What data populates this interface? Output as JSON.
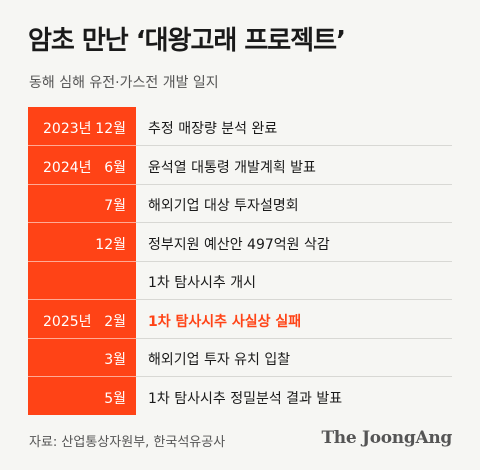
{
  "title": "암초 만난 ‘대왕고래 프로젝트’",
  "subtitle": "동해 심해 유전·가스전 개발 일지",
  "timeline": [
    {
      "year": "2023년",
      "month": "12월",
      "event": "추정 매장량 분석 완료",
      "highlight": false
    },
    {
      "year": "2024년",
      "month": "6월",
      "event": "윤석열 대통령 개발계획 발표",
      "highlight": false
    },
    {
      "year": "",
      "month": "7월",
      "event": "해외기업 대상 투자설명회",
      "highlight": false
    },
    {
      "year": "",
      "month": "12월",
      "event": "정부지원 예산안 497억원 삭감",
      "highlight": false
    },
    {
      "year": "",
      "month": "",
      "event": "1차 탐사시추 개시",
      "highlight": false
    },
    {
      "year": "2025년",
      "month": "2월",
      "event": "1차 탐사시추 사실상 실패",
      "highlight": true
    },
    {
      "year": "",
      "month": "3월",
      "event": "해외기업 투자 유치 입찰",
      "highlight": false
    },
    {
      "year": "",
      "month": "5월",
      "event": "1차 탐사시추 정밀분석 결과 발표",
      "highlight": false
    }
  ],
  "source": "자료: 산업통상자원부, 한국석유공사",
  "logo": "The JoongAng",
  "colors": {
    "accent": "#ff4316",
    "background": "#f6f6f3"
  }
}
